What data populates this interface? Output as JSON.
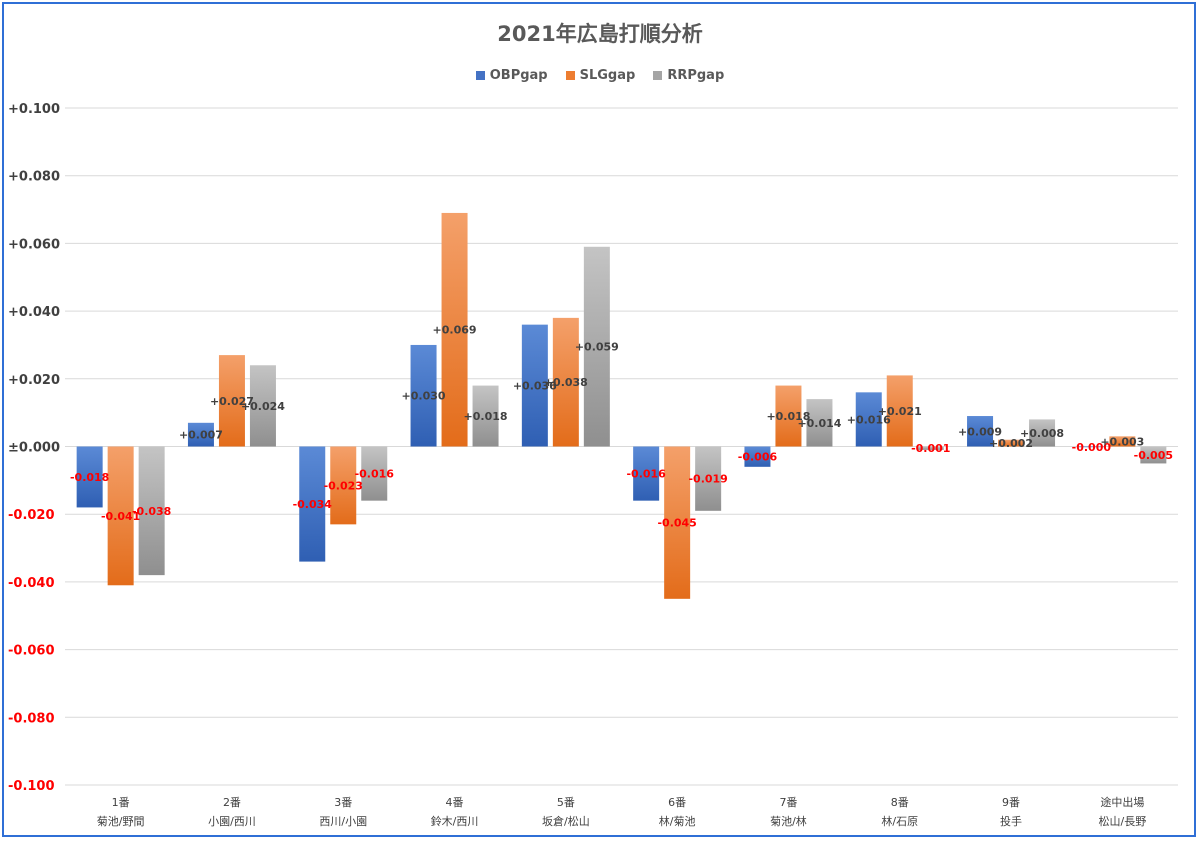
{
  "chart_data": {
    "type": "bar",
    "title": "2021年広島打順分析",
    "xlabel": "",
    "ylabel": "",
    "ylim": [
      -0.1,
      0.1
    ],
    "ytick_values": [
      0.1,
      0.08,
      0.06,
      0.04,
      0.02,
      0.0,
      -0.02,
      -0.04,
      -0.06,
      -0.08,
      -0.1
    ],
    "ytick_labels": [
      "+0.100",
      "+0.080",
      "+0.060",
      "+0.040",
      "+0.020",
      "±0.000",
      "-0.020",
      "-0.040",
      "-0.060",
      "-0.080",
      "-0.100"
    ],
    "grid": true,
    "legend_position": "top-center",
    "categories": [
      {
        "line1": "1番",
        "line2": "菊池/野間"
      },
      {
        "line1": "2番",
        "line2": "小園/西川"
      },
      {
        "line1": "3番",
        "line2": "西川/小園"
      },
      {
        "line1": "4番",
        "line2": "鈴木/西川"
      },
      {
        "line1": "5番",
        "line2": "坂倉/松山"
      },
      {
        "line1": "6番",
        "line2": "林/菊池"
      },
      {
        "line1": "7番",
        "line2": "菊池/林"
      },
      {
        "line1": "8番",
        "line2": "林/石原"
      },
      {
        "line1": "9番",
        "line2": "投手"
      },
      {
        "line1": "途中出場",
        "line2": "松山/長野"
      }
    ],
    "series": [
      {
        "name": "OBPgap",
        "color": "#4472c4",
        "values": [
          -0.018,
          0.007,
          -0.034,
          0.03,
          0.036,
          -0.016,
          -0.006,
          0.016,
          0.009,
          -0.0002
        ],
        "labels": [
          "-0.018",
          "+0.007",
          "-0.034",
          "+0.030",
          "+0.036",
          "-0.016",
          "-0.006",
          "+0.016",
          "+0.009",
          "-0.000"
        ]
      },
      {
        "name": "SLGgap",
        "color": "#ed7d31",
        "values": [
          -0.041,
          0.027,
          -0.023,
          0.069,
          0.038,
          -0.045,
          0.018,
          0.021,
          0.002,
          0.003
        ],
        "labels": [
          "-0.041",
          "+0.027",
          "-0.023",
          "+0.069",
          "+0.038",
          "-0.045",
          "+0.018",
          "+0.021",
          "+0.002",
          "+0.003"
        ]
      },
      {
        "name": "RRPgap",
        "color": "#a5a5a5",
        "values": [
          -0.038,
          0.024,
          -0.016,
          0.018,
          0.059,
          -0.019,
          0.014,
          -0.001,
          0.008,
          -0.005
        ],
        "labels": [
          "-0.038",
          "+0.024",
          "-0.016",
          "+0.018",
          "+0.059",
          "-0.019",
          "+0.014",
          "-0.001",
          "+0.008",
          "-0.005"
        ]
      }
    ],
    "label_colors": {
      "positive": "#404040",
      "negative": "#ff0000"
    },
    "grid_color": "#d9d9d9",
    "frame_color": "#2f6fd6"
  }
}
